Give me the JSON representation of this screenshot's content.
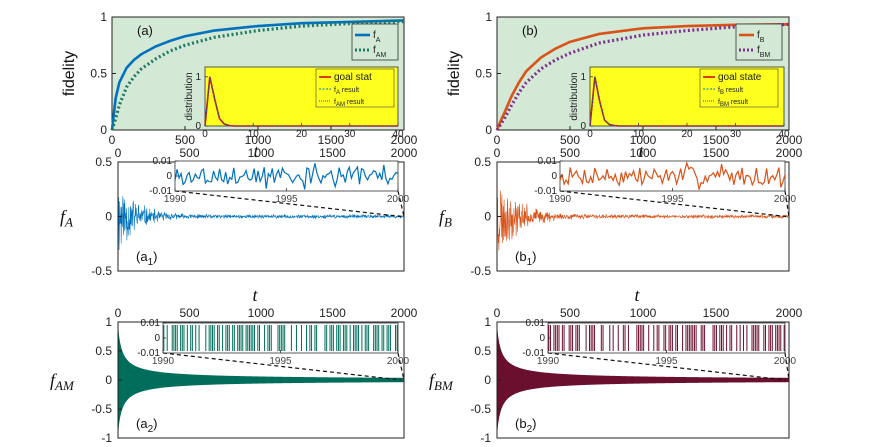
{
  "colors": {
    "fA": "#0072bd",
    "fAM": "#1e7a66",
    "fB": "#d95319",
    "fBM": "#7e2f8e",
    "fBM_fill": "#6b0f2e",
    "fAM_fill": "#006e5a",
    "panel_bg": "#d3e8d5",
    "inset_bg": "#ffff1e",
    "goal": "#cc1111",
    "inset_line_blue": "#0072bd"
  },
  "chart_data": [
    {
      "id": "a",
      "type": "line",
      "panel_label": "(a)",
      "xlabel": "t",
      "ylabel": "fidelity",
      "xlim": [
        0,
        2000
      ],
      "ylim": [
        0,
        1
      ],
      "xticks": [
        "0",
        "500",
        "1000",
        "1500",
        "2000"
      ],
      "yticks": [
        "0",
        "0.5",
        "1"
      ],
      "legend": [
        "f",
        "f"
      ],
      "legend_subs": [
        "A",
        "AM"
      ],
      "series": [
        {
          "name": "fA",
          "style": "solid",
          "x": [
            0,
            25,
            50,
            100,
            150,
            200,
            300,
            400,
            500,
            700,
            1000,
            1300,
            1600,
            2000
          ],
          "values": [
            0,
            0.28,
            0.42,
            0.55,
            0.62,
            0.67,
            0.74,
            0.79,
            0.83,
            0.88,
            0.92,
            0.945,
            0.955,
            0.97
          ]
        },
        {
          "name": "fAM",
          "style": "dotted",
          "x": [
            0,
            25,
            50,
            100,
            150,
            200,
            300,
            400,
            500,
            700,
            1000,
            1300,
            1600,
            2000
          ],
          "values": [
            0,
            0.1,
            0.22,
            0.38,
            0.47,
            0.54,
            0.63,
            0.7,
            0.75,
            0.82,
            0.88,
            0.92,
            0.94,
            0.96
          ]
        }
      ],
      "inset": {
        "ylabel": "distribution",
        "xlim": [
          0,
          40
        ],
        "ylim": [
          0,
          1.2
        ],
        "xticks": [
          "0",
          "10",
          "20",
          "30",
          "40"
        ],
        "yticks": [
          "0",
          "1"
        ],
        "legend": [
          "goal stat",
          "f",
          "f"
        ],
        "legend_subs": [
          "",
          "A",
          "AM"
        ],
        "legend_suffix": [
          "",
          " result",
          " result"
        ],
        "values": [
          0,
          1.0,
          0.55,
          0.15,
          0.04,
          0.01,
          0,
          0,
          0,
          0,
          0,
          0,
          0,
          0,
          0,
          0,
          0,
          0,
          0,
          0,
          0,
          0,
          0,
          0,
          0,
          0,
          0,
          0,
          0,
          0,
          0,
          0,
          0,
          0,
          0,
          0,
          0,
          0,
          0,
          0,
          0
        ]
      }
    },
    {
      "id": "b",
      "type": "line",
      "panel_label": "(b)",
      "xlabel": "t",
      "ylabel": "fidelity",
      "xlim": [
        0,
        2000
      ],
      "ylim": [
        0,
        1
      ],
      "xticks": [
        "0",
        "500",
        "1000",
        "1500",
        "2000"
      ],
      "yticks": [
        "0",
        "0.5",
        "1"
      ],
      "legend": [
        "f",
        "f"
      ],
      "legend_subs": [
        "B",
        "BM"
      ],
      "series": [
        {
          "name": "fB",
          "style": "solid",
          "x": [
            0,
            25,
            50,
            100,
            150,
            200,
            300,
            400,
            500,
            700,
            1000,
            1300,
            1600,
            2000
          ],
          "values": [
            0,
            0.08,
            0.15,
            0.3,
            0.42,
            0.52,
            0.64,
            0.72,
            0.78,
            0.85,
            0.9,
            0.92,
            0.93,
            0.935
          ]
        },
        {
          "name": "fBM",
          "style": "dotted",
          "x": [
            0,
            25,
            50,
            100,
            150,
            200,
            300,
            400,
            500,
            700,
            1000,
            1300,
            1600,
            2000
          ],
          "values": [
            0,
            0.05,
            0.1,
            0.22,
            0.33,
            0.42,
            0.54,
            0.62,
            0.68,
            0.77,
            0.84,
            0.88,
            0.91,
            0.935
          ]
        }
      ],
      "inset": {
        "ylabel": "distribution",
        "xlim": [
          0,
          40
        ],
        "ylim": [
          0,
          1.2
        ],
        "xticks": [
          "0",
          "10",
          "20",
          "30",
          "40"
        ],
        "yticks": [
          "0",
          "1"
        ],
        "legend": [
          "goal state",
          "f",
          "f"
        ],
        "legend_subs": [
          "",
          "B",
          "BM"
        ],
        "legend_suffix": [
          "",
          " result",
          " result"
        ],
        "values": [
          0,
          1.0,
          0.5,
          0.12,
          0.03,
          0.01,
          0,
          0,
          0,
          0,
          0,
          0,
          0,
          0,
          0,
          0,
          0,
          0,
          0,
          0,
          0,
          0,
          0,
          0,
          0,
          0,
          0,
          0,
          0,
          0,
          0,
          0,
          0,
          0,
          0,
          0,
          0,
          0,
          0,
          0,
          0
        ]
      }
    },
    {
      "id": "a1",
      "type": "line",
      "panel_label": "(a",
      "panel_sub": "1",
      "panel_close": ")",
      "ylabel": "f",
      "ylabel_sub": "A",
      "xlabel": "t",
      "xlim": [
        0,
        2000
      ],
      "ylim": [
        -0.5,
        0.5
      ],
      "xticks": [
        "0",
        "500",
        "1000",
        "1500",
        "2000"
      ],
      "yticks": [
        "-0.5",
        "0",
        "0.5"
      ],
      "envelope": {
        "amplitude": 0.45,
        "decay_tau": 120,
        "floor": 0.02,
        "seed": 11
      },
      "inset": {
        "xlim": [
          1990,
          2000
        ],
        "ylim": [
          -0.01,
          0.01
        ],
        "xticks": [
          "1990",
          "1995",
          "2000"
        ],
        "yticks": [
          "-0.01",
          "0",
          "0.01"
        ],
        "seed": 3
      }
    },
    {
      "id": "b1",
      "type": "line",
      "panel_label": "(b",
      "panel_sub": "1",
      "panel_close": ")",
      "ylabel": "f",
      "ylabel_sub": "B",
      "xlabel": "t",
      "xlim": [
        0,
        2000
      ],
      "ylim": [
        -0.5,
        0.5
      ],
      "xticks": [
        "0",
        "500",
        "1000",
        "1500",
        "2000"
      ],
      "yticks": [
        "-0.5",
        "0",
        "0.5"
      ],
      "envelope": {
        "amplitude": 0.45,
        "decay_tau": 140,
        "floor": 0.02,
        "seed": 23
      },
      "inset": {
        "xlim": [
          1990,
          2000
        ],
        "ylim": [
          -0.01,
          0.01
        ],
        "xticks": [
          "1990",
          "1995",
          "2000"
        ],
        "yticks": [
          "-0.01",
          "0",
          "0.01"
        ],
        "seed": 7
      }
    },
    {
      "id": "a2",
      "type": "area",
      "panel_label": "(a",
      "panel_sub": "2",
      "panel_close": ")",
      "ylabel": "f",
      "ylabel_sub": "AM",
      "xlim": [
        0,
        2000
      ],
      "ylim": [
        -1,
        1
      ],
      "xticks": [
        "0",
        "500",
        "1000",
        "1500",
        "2000"
      ],
      "yticks": [
        "-1",
        "-0.5",
        "0",
        "0.5",
        "1"
      ],
      "envelope": {
        "amplitude": 0.95,
        "decay_power": 0.7,
        "t0": 20
      },
      "inset": {
        "xlim": [
          1990,
          2000
        ],
        "ylim": [
          -0.01,
          0.01
        ],
        "xticks": [
          "1990",
          "1995",
          "2000"
        ],
        "yticks": [
          "-0.01",
          "0",
          "0.01"
        ],
        "seed": 5
      }
    },
    {
      "id": "b2",
      "type": "area",
      "panel_label": "(b",
      "panel_sub": "2",
      "panel_close": ")",
      "ylabel": "f",
      "ylabel_sub": "BM",
      "xlim": [
        0,
        2000
      ],
      "ylim": [
        -1,
        1
      ],
      "xticks": [
        "0",
        "500",
        "1000",
        "1500",
        "2000"
      ],
      "yticks": [
        "-1",
        "-0.5",
        "0",
        "0.5",
        "1"
      ],
      "envelope": {
        "amplitude": 0.95,
        "decay_power": 0.7,
        "t0": 20
      },
      "inset": {
        "xlim": [
          1990,
          2000
        ],
        "ylim": [
          -0.01,
          0.01
        ],
        "xticks": [
          "1990",
          "1995",
          "2000"
        ],
        "yticks": [
          "-0.01",
          "0",
          "0.01"
        ],
        "seed": 9
      }
    }
  ]
}
